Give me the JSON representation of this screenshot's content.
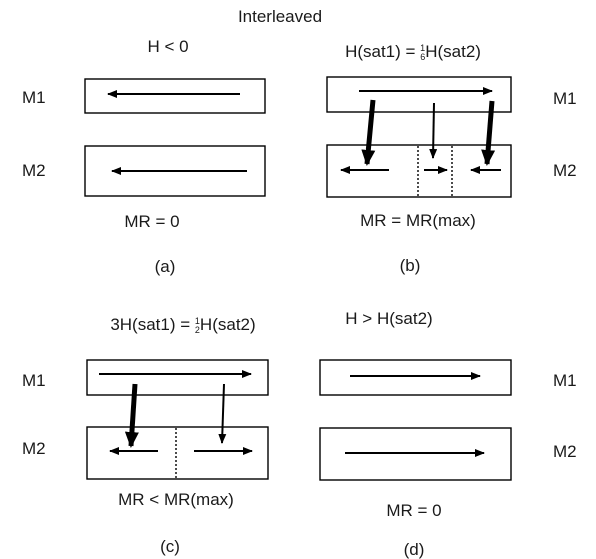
{
  "header": "Interleaved",
  "layers": {
    "top": "M1",
    "bottom": "M2"
  },
  "panels": {
    "a": {
      "condition": "H < 0",
      "mr": "MR = 0",
      "tag": "(a)"
    },
    "b": {
      "condition_lhs": "H(sat1) = ",
      "condition_num": "1",
      "condition_den": "6",
      "condition_rhs": "H(sat2)",
      "mr": "MR = MR(max)",
      "tag": "(b)"
    },
    "c": {
      "condition_lhs": "3H(sat1) = ",
      "condition_num": "1",
      "condition_den": "2",
      "condition_rhs": "H(sat2)",
      "mr": "MR < MR(max)",
      "tag": "(c)"
    },
    "d": {
      "condition": "H > H(sat2)",
      "mr": "MR = 0",
      "tag": "(d)"
    }
  }
}
